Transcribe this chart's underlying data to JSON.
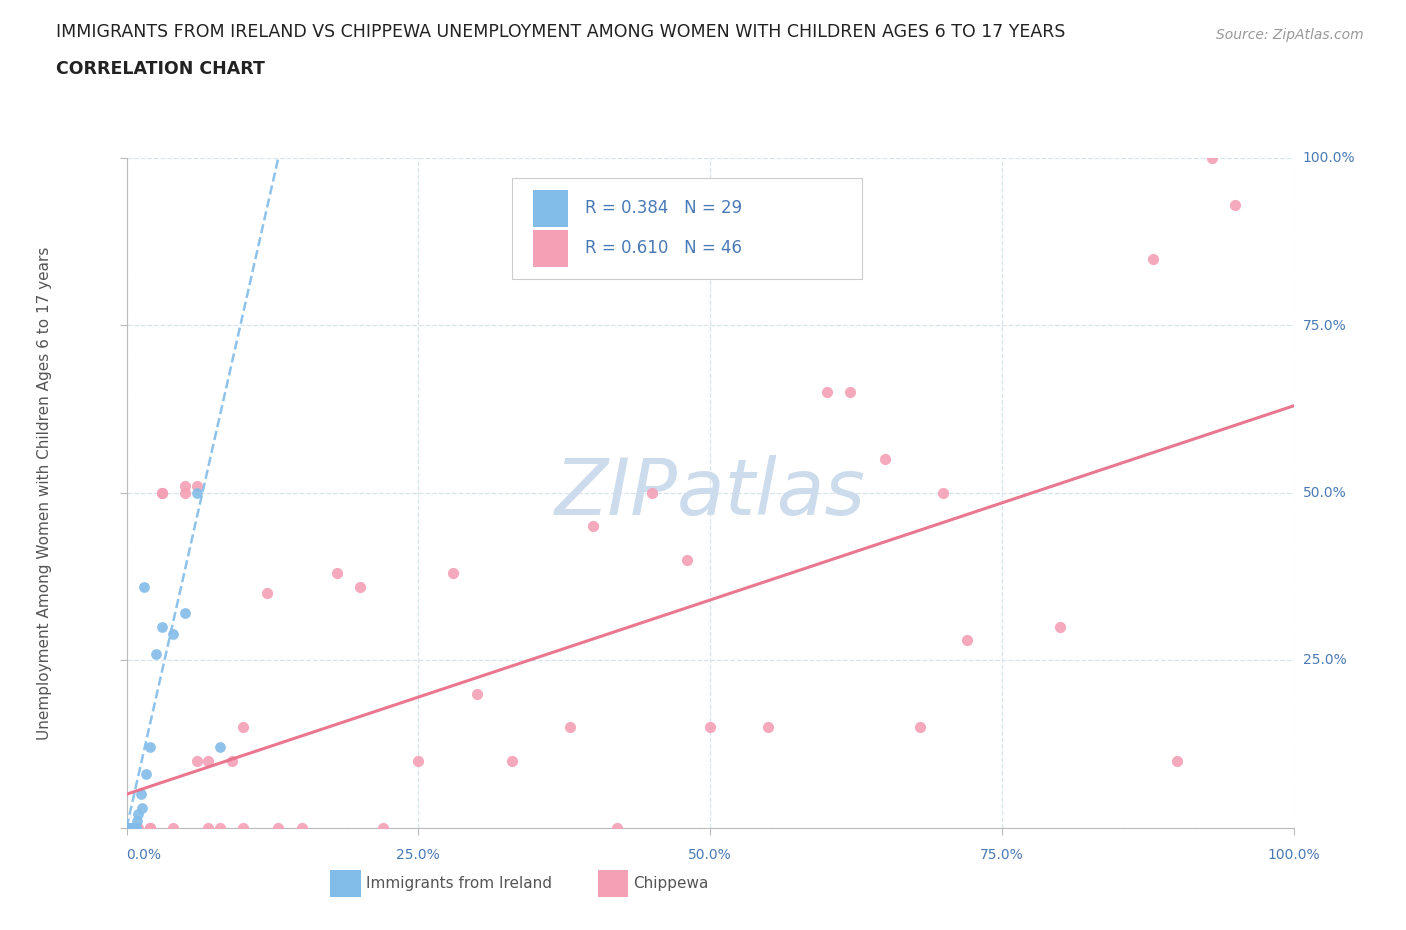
{
  "title_line1": "IMMIGRANTS FROM IRELAND VS CHIPPEWA UNEMPLOYMENT AMONG WOMEN WITH CHILDREN AGES 6 TO 17 YEARS",
  "title_line2": "CORRELATION CHART",
  "source": "Source: ZipAtlas.com",
  "ylabel": "Unemployment Among Women with Children Ages 6 to 17 years",
  "xlim": [
    0,
    1.0
  ],
  "ylim": [
    0,
    1.0
  ],
  "x_tick_vals": [
    0.0,
    0.25,
    0.5,
    0.75,
    1.0
  ],
  "x_tick_labels": [
    "0.0%",
    "25.0%",
    "50.0%",
    "75.0%",
    "100.0%"
  ],
  "y_tick_vals": [
    0.0,
    0.25,
    0.5,
    0.75,
    1.0
  ],
  "y_tick_labels": [
    "0.0%",
    "25.0%",
    "50.0%",
    "75.0%",
    "100.0%"
  ],
  "ireland_R": 0.384,
  "ireland_N": 29,
  "chippewa_R": 0.61,
  "chippewa_N": 46,
  "ireland_color": "#82bce8",
  "chippewa_color": "#f4a0b5",
  "ireland_line_color": "#82bce8",
  "chippewa_line_color": "#e8708a",
  "background_color": "#ffffff",
  "watermark": "ZIPatlas",
  "watermark_color": "#ccdcec",
  "grid_color": "#d8e4ec",
  "title_color": "#222222",
  "axis_label_color": "#4a7ab5",
  "ireland_scatter_x": [
    0.0,
    0.0,
    0.0,
    0.001,
    0.001,
    0.002,
    0.002,
    0.003,
    0.003,
    0.004,
    0.004,
    0.005,
    0.005,
    0.006,
    0.007,
    0.008,
    0.009,
    0.01,
    0.012,
    0.013,
    0.015,
    0.017,
    0.02,
    0.025,
    0.03,
    0.04,
    0.05,
    0.06,
    0.08
  ],
  "ireland_scatter_y": [
    0.0,
    0.0,
    0.0,
    0.0,
    0.0,
    0.0,
    0.0,
    0.0,
    0.0,
    0.0,
    0.0,
    0.0,
    0.0,
    0.0,
    0.0,
    0.0,
    0.01,
    0.02,
    0.05,
    0.03,
    0.36,
    0.08,
    0.12,
    0.26,
    0.3,
    0.29,
    0.32,
    0.5,
    0.12
  ],
  "chippewa_scatter_x": [
    0.0,
    0.0,
    0.01,
    0.02,
    0.02,
    0.03,
    0.03,
    0.04,
    0.05,
    0.05,
    0.06,
    0.06,
    0.07,
    0.07,
    0.08,
    0.09,
    0.1,
    0.1,
    0.12,
    0.13,
    0.15,
    0.18,
    0.2,
    0.22,
    0.25,
    0.28,
    0.3,
    0.33,
    0.38,
    0.4,
    0.42,
    0.45,
    0.48,
    0.5,
    0.55,
    0.6,
    0.62,
    0.65,
    0.68,
    0.7,
    0.72,
    0.8,
    0.88,
    0.9,
    0.93,
    0.95
  ],
  "chippewa_scatter_y": [
    0.0,
    0.0,
    0.0,
    0.0,
    0.0,
    0.5,
    0.5,
    0.0,
    0.5,
    0.51,
    0.51,
    0.1,
    0.0,
    0.1,
    0.0,
    0.1,
    0.15,
    0.0,
    0.35,
    0.0,
    0.0,
    0.38,
    0.36,
    0.0,
    0.1,
    0.38,
    0.2,
    0.1,
    0.15,
    0.45,
    0.0,
    0.5,
    0.4,
    0.15,
    0.15,
    0.65,
    0.65,
    0.55,
    0.15,
    0.5,
    0.28,
    0.3,
    0.85,
    0.1,
    1.0,
    0.93
  ],
  "ireland_trendline_x": [
    0.0,
    0.13
  ],
  "ireland_trendline_y": [
    0.0,
    1.0
  ],
  "chippewa_trendline_x": [
    0.0,
    1.0
  ],
  "chippewa_trendline_y": [
    0.05,
    0.63
  ]
}
